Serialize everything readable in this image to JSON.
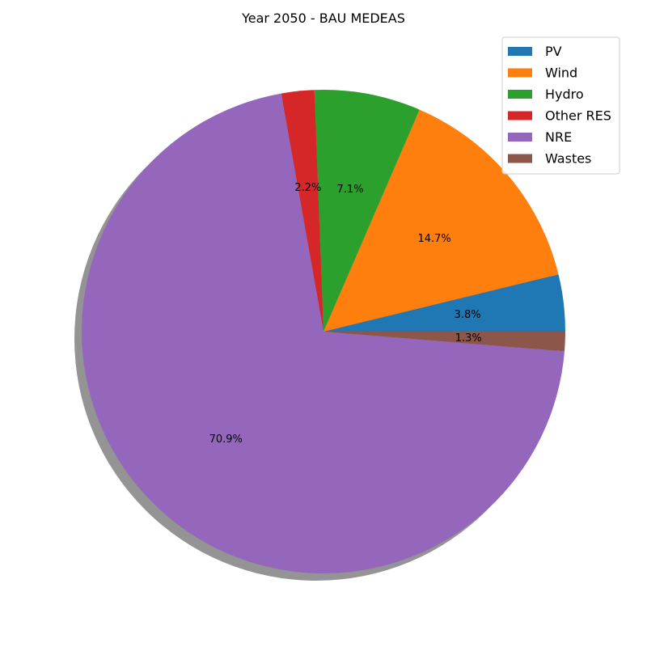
{
  "chart_data": {
    "type": "pie",
    "title": "Year 2050 - BAU MEDEAS",
    "slices": [
      {
        "name": "PV",
        "value": 3.8,
        "label": "3.8%",
        "color": "#1f77b4"
      },
      {
        "name": "Wind",
        "value": 14.7,
        "label": "14.7%",
        "color": "#ff7f0e"
      },
      {
        "name": "Hydro",
        "value": 7.1,
        "label": "7.1%",
        "color": "#2ca02c"
      },
      {
        "name": "Other RES",
        "value": 2.2,
        "label": "2.2%",
        "color": "#d62728"
      },
      {
        "name": "NRE",
        "value": 70.9,
        "label": "70.9%",
        "color": "#9467bd"
      },
      {
        "name": "Wastes",
        "value": 1.3,
        "label": "1.3%",
        "color": "#8c564b"
      }
    ],
    "start_angle": 0,
    "direction": "counterclockwise",
    "shadow": true,
    "legend": {
      "placement": "top-right"
    }
  }
}
